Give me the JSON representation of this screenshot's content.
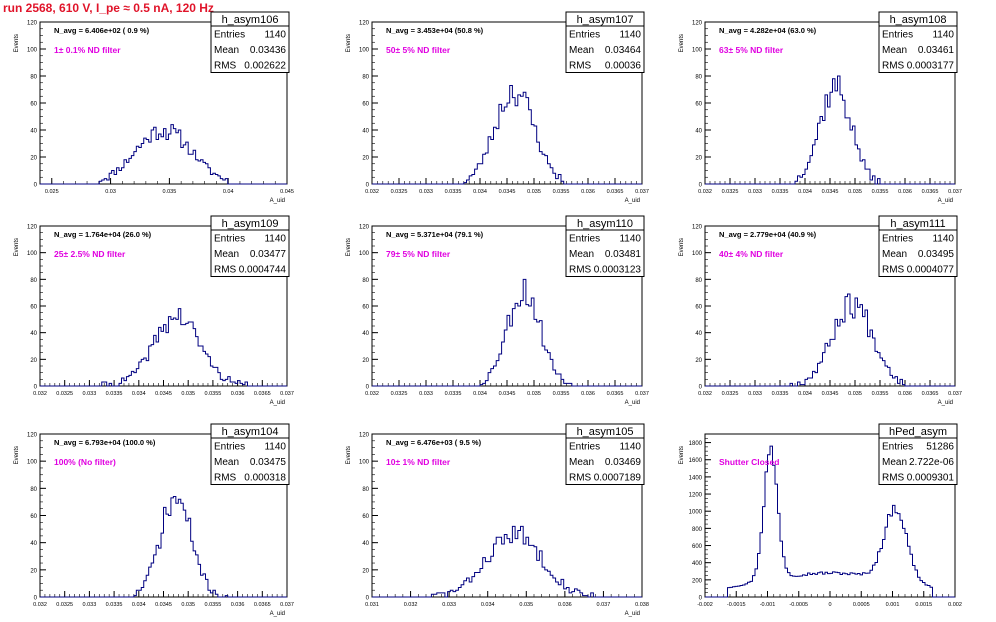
{
  "header": {
    "run_title": "run 2568,   610 V, I_pe ≈ 0.5 nA, 120 Hz"
  },
  "colors": {
    "histogram": "#000080",
    "annotation": "#e000e0",
    "title_red": "#e0142a",
    "frame": "#000000"
  },
  "chart_data": [
    {
      "type": "histogram",
      "title": "h_asym106",
      "stats": {
        "Entries": "1140",
        "Mean": "0.03436",
        "RMS": "0.002622"
      },
      "n_avg": "N_avg = 6.406e+02 ( 0.9 %)",
      "annotation": "1± 0.1% ND filter",
      "ylabel": "Events",
      "xlabel": "A_uid",
      "xlim": [
        0.024,
        0.045
      ],
      "ylim": [
        0,
        120
      ],
      "yticks": [
        0,
        20,
        40,
        60,
        80,
        100,
        120
      ],
      "xticks": [
        0.025,
        0.03,
        0.035,
        0.04,
        0.045
      ],
      "xtick_labels": [
        "0.025",
        "0.03",
        "0.035",
        "0.04",
        "0.045"
      ],
      "peak": {
        "mean": 0.0345,
        "sigma": 0.0024,
        "amplitude": 40,
        "range": [
          0.029,
          0.04
        ],
        "seed": 11
      }
    },
    {
      "type": "histogram",
      "title": "h_asym107",
      "stats": {
        "Entries": "1140",
        "Mean": "0.03464",
        "RMS": "0.00036"
      },
      "n_avg": "N_avg = 3.453e+04 (50.8 %)",
      "annotation": "50± 5% ND filter",
      "ylabel": "Events",
      "xlabel": "A_uid",
      "xlim": [
        0.032,
        0.037
      ],
      "ylim": [
        0,
        120
      ],
      "yticks": [
        0,
        20,
        40,
        60,
        80,
        100,
        120
      ],
      "xticks": [
        0.032,
        0.0325,
        0.033,
        0.0335,
        0.034,
        0.0345,
        0.035,
        0.0355,
        0.036,
        0.0365,
        0.037
      ],
      "xtick_labels": [
        "0.032",
        "0.0325",
        "0.033",
        "0.0335",
        "0.034",
        "0.0345",
        "0.035",
        "0.0355",
        "0.036",
        "0.0365",
        "0.037"
      ],
      "peak": {
        "mean": 0.03464,
        "sigma": 0.00036,
        "amplitude": 70,
        "range": [
          0.0337,
          0.0356
        ],
        "seed": 23
      }
    },
    {
      "type": "histogram",
      "title": "h_asym108",
      "stats": {
        "Entries": "1140",
        "Mean": "0.03461",
        "RMS": "0.0003177"
      },
      "n_avg": "N_avg = 4.282e+04 (63.0 %)",
      "annotation": "63± 5% ND filter",
      "ylabel": "Events",
      "xlabel": "A_uid",
      "xlim": [
        0.032,
        0.037
      ],
      "ylim": [
        0,
        120
      ],
      "yticks": [
        0,
        20,
        40,
        60,
        80,
        100,
        120
      ],
      "xticks": [
        0.032,
        0.0325,
        0.033,
        0.0335,
        0.034,
        0.0345,
        0.035,
        0.0355,
        0.036,
        0.0365,
        0.037
      ],
      "xtick_labels": [
        "0.032",
        "0.0325",
        "0.033",
        "0.0335",
        "0.034",
        "0.0345",
        "0.035",
        "0.0355",
        "0.036",
        "0.0365",
        "0.037"
      ],
      "peak": {
        "mean": 0.03461,
        "sigma": 0.00032,
        "amplitude": 72,
        "range": [
          0.0338,
          0.0355
        ],
        "seed": 37
      }
    },
    {
      "type": "histogram",
      "title": "h_asym109",
      "stats": {
        "Entries": "1140",
        "Mean": "0.03477",
        "RMS": "0.0004744"
      },
      "n_avg": "N_avg = 1.764e+04 (26.0 %)",
      "annotation": "25± 2.5% ND filter",
      "ylabel": "Events",
      "xlabel": "A_uid",
      "xlim": [
        0.032,
        0.037
      ],
      "ylim": [
        0,
        120
      ],
      "yticks": [
        0,
        20,
        40,
        60,
        80,
        100,
        120
      ],
      "xticks": [
        0.032,
        0.0325,
        0.033,
        0.0335,
        0.034,
        0.0345,
        0.035,
        0.0355,
        0.036,
        0.0365,
        0.037
      ],
      "xtick_labels": [
        "0.032",
        "0.0325",
        "0.033",
        "0.0335",
        "0.034",
        "0.0345",
        "0.035",
        "0.0355",
        "0.036",
        "0.0365",
        "0.037"
      ],
      "peak": {
        "mean": 0.03477,
        "sigma": 0.00047,
        "amplitude": 52,
        "range": [
          0.0332,
          0.0362
        ],
        "seed": 41
      }
    },
    {
      "type": "histogram",
      "title": "h_asym110",
      "stats": {
        "Entries": "1140",
        "Mean": "0.03481",
        "RMS": "0.0003123"
      },
      "n_avg": "N_avg = 5.371e+04 (79.1 %)",
      "annotation": "79± 5% ND filter",
      "ylabel": "Events",
      "xlabel": "A_uid",
      "xlim": [
        0.032,
        0.037
      ],
      "ylim": [
        0,
        120
      ],
      "yticks": [
        0,
        20,
        40,
        60,
        80,
        100,
        120
      ],
      "xticks": [
        0.032,
        0.0325,
        0.033,
        0.0335,
        0.034,
        0.0345,
        0.035,
        0.0355,
        0.036,
        0.0365,
        0.037
      ],
      "xtick_labels": [
        "0.032",
        "0.0325",
        "0.033",
        "0.0335",
        "0.034",
        "0.0345",
        "0.035",
        "0.0355",
        "0.036",
        "0.0365",
        "0.037"
      ],
      "peak": {
        "mean": 0.03481,
        "sigma": 0.00031,
        "amplitude": 72,
        "range": [
          0.034,
          0.0357
        ],
        "seed": 53
      }
    },
    {
      "type": "histogram",
      "title": "h_asym111",
      "stats": {
        "Entries": "1140",
        "Mean": "0.03495",
        "RMS": "0.0004077"
      },
      "n_avg": "N_avg = 2.779e+04 (40.9 %)",
      "annotation": "40± 4% ND filter",
      "ylabel": "Events",
      "xlabel": "A_uid",
      "xlim": [
        0.032,
        0.037
      ],
      "ylim": [
        0,
        120
      ],
      "yticks": [
        0,
        20,
        40,
        60,
        80,
        100,
        120
      ],
      "xticks": [
        0.032,
        0.0325,
        0.033,
        0.0335,
        0.034,
        0.0345,
        0.035,
        0.0355,
        0.036,
        0.0365,
        0.037
      ],
      "xtick_labels": [
        "0.032",
        "0.0325",
        "0.033",
        "0.0335",
        "0.034",
        "0.0345",
        "0.035",
        "0.0355",
        "0.036",
        "0.0365",
        "0.037"
      ],
      "peak": {
        "mean": 0.03495,
        "sigma": 0.00041,
        "amplitude": 62,
        "range": [
          0.0336,
          0.036
        ],
        "seed": 67
      }
    },
    {
      "type": "histogram",
      "title": "h_asym104",
      "stats": {
        "Entries": "1140",
        "Mean": "0.03475",
        "RMS": "0.000318"
      },
      "n_avg": "N_avg = 6.793e+04 (100.0 %)",
      "annotation": "100% (No filter)",
      "ylabel": "Events",
      "xlabel": "A_uid",
      "xlim": [
        0.032,
        0.037
      ],
      "ylim": [
        0,
        120
      ],
      "yticks": [
        0,
        20,
        40,
        60,
        80,
        100,
        120
      ],
      "xticks": [
        0.032,
        0.0325,
        0.033,
        0.0335,
        0.034,
        0.0345,
        0.035,
        0.0355,
        0.036,
        0.0365,
        0.037
      ],
      "xtick_labels": [
        "0.032",
        "0.0325",
        "0.033",
        "0.0335",
        "0.034",
        "0.0345",
        "0.035",
        "0.0355",
        "0.036",
        "0.0365",
        "0.037"
      ],
      "peak": {
        "mean": 0.03475,
        "sigma": 0.00032,
        "amplitude": 72,
        "range": [
          0.0339,
          0.0358
        ],
        "seed": 71
      }
    },
    {
      "type": "histogram",
      "title": "h_asym105",
      "stats": {
        "Entries": "1140",
        "Mean": "0.03469",
        "RMS": "0.0007189"
      },
      "n_avg": "N_avg = 6.476e+03 ( 9.5 %)",
      "annotation": "10± 1% ND filter",
      "ylabel": "Events",
      "xlabel": "A_uid",
      "xlim": [
        0.031,
        0.038
      ],
      "ylim": [
        0,
        120
      ],
      "yticks": [
        0,
        20,
        40,
        60,
        80,
        100,
        120
      ],
      "xticks": [
        0.031,
        0.032,
        0.033,
        0.034,
        0.035,
        0.036,
        0.037,
        0.038
      ],
      "xtick_labels": [
        "0.031",
        "0.032",
        "0.033",
        "0.034",
        "0.035",
        "0.036",
        "0.037",
        "0.038"
      ],
      "peak": {
        "mean": 0.03469,
        "sigma": 0.00072,
        "amplitude": 46,
        "range": [
          0.0325,
          0.037
        ],
        "seed": 83
      }
    },
    {
      "type": "histogram",
      "title": "hPed_asym",
      "stats": {
        "Entries": "51286",
        "Mean": "2.722e-06",
        "RMS": "0.0009301"
      },
      "n_avg": "",
      "annotation": "Shutter Closed",
      "ylabel": "Events",
      "xlabel": "",
      "xlim": [
        -0.002,
        0.002
      ],
      "ylim": [
        0,
        1900
      ],
      "yticks": [
        0,
        200,
        400,
        600,
        800,
        1000,
        1200,
        1400,
        1600,
        1800
      ],
      "xticks": [
        -0.002,
        -0.0015,
        -0.001,
        -0.0005,
        0,
        0.0005,
        0.001,
        0.0015,
        0.002
      ],
      "xtick_labels": [
        "-0.002",
        "-0.0015",
        "-0.001",
        "-0.0005",
        "0",
        "0.0005",
        "0.001",
        "0.0015",
        "0.002"
      ],
      "bimodal": [
        {
          "mean": -0.00095,
          "sigma": 0.00011,
          "amplitude": 1500
        },
        {
          "mean": 0.00105,
          "sigma": 0.00018,
          "amplitude": 850
        }
      ],
      "baseline": 280,
      "range": [
        -0.00165,
        0.00165
      ],
      "seed": 97
    }
  ]
}
